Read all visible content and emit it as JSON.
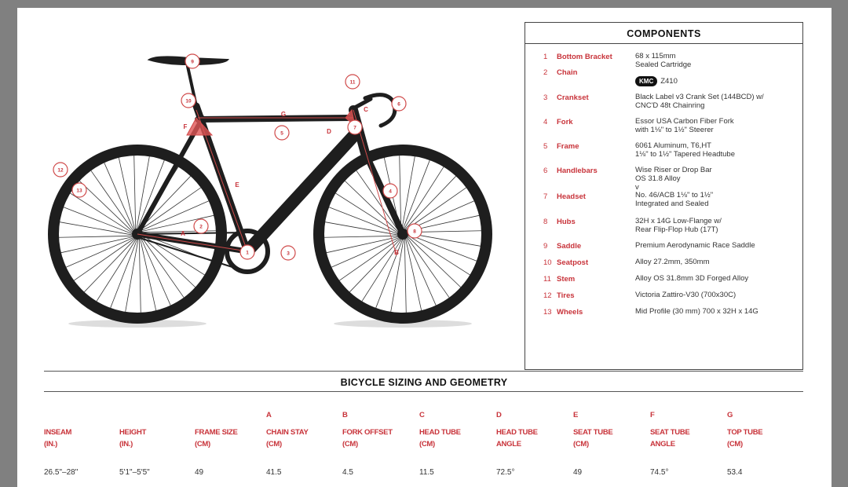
{
  "components": {
    "title": "COMPONENTS",
    "items": [
      {
        "num": "1",
        "label": "Bottom Bracket",
        "value": "68 x 115mm\nSealed Cartridge"
      },
      {
        "num": "2",
        "label": "Chain",
        "brand": "KMC",
        "value": "Z410"
      },
      {
        "num": "3",
        "label": "Crankset",
        "value": "Black Label v3 Crank Set (144BCD) w/\nCNC'D 48t Chainring"
      },
      {
        "num": "4",
        "label": "Fork",
        "value": "Essor USA Carbon Fiber Fork\nwith 1⅛\" to 1½\" Steerer"
      },
      {
        "num": "5",
        "label": "Frame",
        "value": "6061 Aluminum, T6,HT\n1⅛\" to 1½\" Tapered Headtube"
      },
      {
        "num": "6",
        "label": "Handlebars",
        "value": "Wise Riser or Drop Bar\nOS 31.8 Alloy\nv"
      },
      {
        "num": "7",
        "label": "Headset",
        "value": "No. 46/ACB 1⅛\" to 1½\"\nIntegrated and Sealed"
      },
      {
        "num": "8",
        "label": "Hubs",
        "value": "32H x 14G Low-Flange w/\nRear Flip-Flop Hub (17T)"
      },
      {
        "num": "9",
        "label": "Saddle",
        "value": "Premium Aerodynamic Race Saddle"
      },
      {
        "num": "10",
        "label": "Seatpost",
        "value": "Alloy 27.2mm, 350mm"
      },
      {
        "num": "11",
        "label": "Stem",
        "value": "Alloy OS 31.8mm 3D Forged Alloy"
      },
      {
        "num": "12",
        "label": "Tires",
        "value": "Victoria Zattiro-V30 (700x30C)"
      },
      {
        "num": "13",
        "label": "Wheels",
        "value": "Mid Profile (30 mm) 700 x 32H x 14G"
      }
    ]
  },
  "diagram": {
    "markers": [
      "1",
      "2",
      "3",
      "4",
      "5",
      "6",
      "7",
      "8",
      "9",
      "10",
      "11",
      "12",
      "13"
    ],
    "letters": [
      "A",
      "B",
      "C",
      "D",
      "E",
      "F",
      "G"
    ]
  },
  "geometry": {
    "title": "BICYCLE SIZING AND GEOMETRY",
    "columns": [
      {
        "letter": "",
        "h1": "INSEAM",
        "h2": "(IN.)",
        "value": "26.5\"–28\""
      },
      {
        "letter": "",
        "h1": "HEIGHT",
        "h2": "(IN.)",
        "value": "5'1\"–5'5\""
      },
      {
        "letter": "",
        "h1": "FRAME SIZE",
        "h2": "(CM)",
        "value": "49"
      },
      {
        "letter": "A",
        "h1": "CHAIN STAY",
        "h2": "(CM)",
        "value": "41.5"
      },
      {
        "letter": "B",
        "h1": "FORK OFFSET",
        "h2": "(CM)",
        "value": "4.5"
      },
      {
        "letter": "C",
        "h1": "HEAD TUBE",
        "h2": "(CM)",
        "value": "11.5"
      },
      {
        "letter": "D",
        "h1": "HEAD TUBE",
        "h2": "ANGLE",
        "value": "72.5°"
      },
      {
        "letter": "E",
        "h1": "SEAT TUBE",
        "h2": "(CM)",
        "value": "49"
      },
      {
        "letter": "F",
        "h1": "SEAT TUBE",
        "h2": "ANGLE",
        "value": "74.5°"
      },
      {
        "letter": "G",
        "h1": "TOP TUBE",
        "h2": "(CM)",
        "value": "53.4"
      }
    ]
  },
  "colors": {
    "accent": "#c8333a",
    "frame": "#1e1e1e",
    "background": "#808080"
  }
}
